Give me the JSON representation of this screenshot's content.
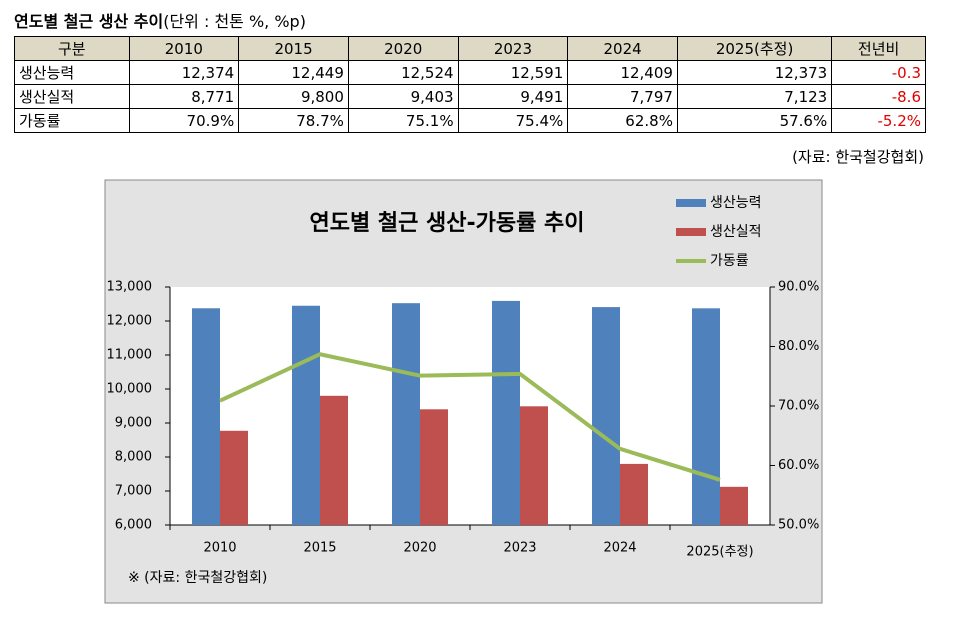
{
  "title": "연도별 철근 생산 추이",
  "unit": "(단위 : 천톤 %, %p)",
  "table": {
    "header": [
      "구분",
      "2010",
      "2015",
      "2020",
      "2023",
      "2024",
      "2025(추정)",
      "전년비"
    ],
    "rows": [
      [
        "생산능력",
        "12,374",
        "12,449",
        "12,524",
        "12,591",
        "12,409",
        "12,373",
        "-0.3"
      ],
      [
        "생산실적",
        "8,771",
        "9,800",
        "9,403",
        "9,491",
        "7,797",
        "7,123",
        "-8.6"
      ],
      [
        "가동률",
        "70.9%",
        "78.7%",
        "75.1%",
        "75.4%",
        "62.8%",
        "57.6%",
        "-5.2%"
      ]
    ]
  },
  "source": "(자료: 한국철강협회)",
  "chart_data": {
    "type": "bar",
    "title": "연도별 철근 생산-가동률 추이",
    "categories": [
      "2010",
      "2015",
      "2020",
      "2023",
      "2024",
      "2025(추정)"
    ],
    "series": [
      {
        "name": "생산능력",
        "color": "#4f81bd",
        "values": [
          12374,
          12449,
          12524,
          12591,
          12409,
          12373
        ]
      },
      {
        "name": "생산실적",
        "color": "#c0504d",
        "values": [
          8771,
          9800,
          9403,
          9491,
          7797,
          7123
        ]
      },
      {
        "name": "가동률",
        "color": "#9bbb59",
        "type": "line",
        "axis": "y2",
        "values": [
          70.9,
          78.7,
          75.1,
          75.4,
          62.8,
          57.6
        ]
      }
    ],
    "ylim": [
      6000,
      13000
    ],
    "yticks": [
      {
        "value": 6000,
        "label": "6,000"
      },
      {
        "value": 7000,
        "label": "7,000"
      },
      {
        "value": 8000,
        "label": "8,000"
      },
      {
        "value": 9000,
        "label": "9,000"
      },
      {
        "value": 10000,
        "label": "10,000"
      },
      {
        "value": 11000,
        "label": "11,000"
      },
      {
        "value": 12000,
        "label": "12,000"
      },
      {
        "value": 13000,
        "label": "13,000"
      }
    ],
    "y2lim": [
      50,
      90
    ],
    "y2ticks": [
      {
        "value": 50,
        "label": "50.0%"
      },
      {
        "value": 60,
        "label": "60.0%"
      },
      {
        "value": 70,
        "label": "70.0%"
      },
      {
        "value": 80,
        "label": "80.0%"
      },
      {
        "value": 90,
        "label": "90.0%"
      }
    ],
    "note": "※ (자료: 한국철강협회)",
    "legend": "top-right"
  }
}
